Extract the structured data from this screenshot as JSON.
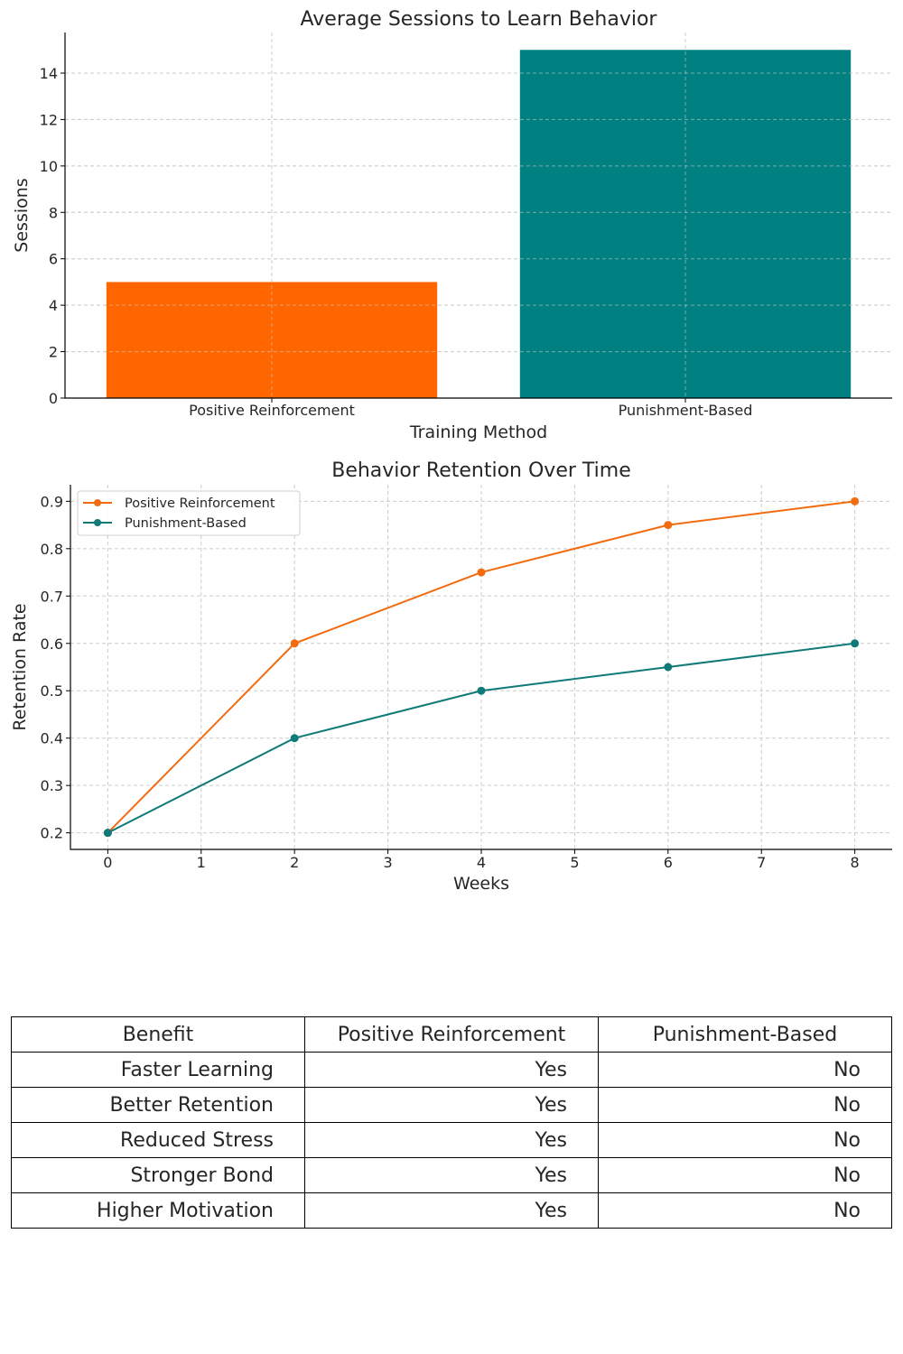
{
  "chart_data": [
    {
      "type": "bar",
      "title": "Average Sessions to Learn Behavior",
      "xlabel": "Training Method",
      "ylabel": "Sessions",
      "categories": [
        "Positive Reinforcement",
        "Punishment-Based"
      ],
      "values": [
        5,
        15
      ],
      "colors": [
        "#ff6600",
        "#008080"
      ],
      "ylim": [
        0,
        15.75
      ],
      "yticks": [
        0,
        2,
        4,
        6,
        8,
        10,
        12,
        14
      ],
      "grid": true
    },
    {
      "type": "line",
      "title": "Behavior Retention Over Time",
      "xlabel": "Weeks",
      "ylabel": "Retention Rate",
      "x": [
        0,
        2,
        4,
        6,
        8
      ],
      "xlim": [
        -0.4,
        8.4
      ],
      "ylim": [
        0.165,
        0.935
      ],
      "xticks": [
        0,
        1,
        2,
        3,
        4,
        5,
        6,
        7,
        8
      ],
      "yticks": [
        0.2,
        0.3,
        0.4,
        0.5,
        0.6,
        0.7,
        0.8,
        0.9
      ],
      "grid": true,
      "legend": "upper left",
      "series": [
        {
          "name": "Positive Reinforcement",
          "values": [
            0.2,
            0.6,
            0.75,
            0.85,
            0.9
          ],
          "color": "#f26b0f"
        },
        {
          "name": "Punishment-Based",
          "values": [
            0.2,
            0.4,
            0.5,
            0.55,
            0.6
          ],
          "color": "#0f7a78"
        }
      ]
    }
  ],
  "table": {
    "headers": [
      "Benefit",
      "Positive Reinforcement",
      "Punishment-Based"
    ],
    "rows": [
      [
        "Faster Learning",
        "Yes",
        "No"
      ],
      [
        "Better Retention",
        "Yes",
        "No"
      ],
      [
        "Reduced Stress",
        "Yes",
        "No"
      ],
      [
        "Stronger Bond",
        "Yes",
        "No"
      ],
      [
        "Higher Motivation",
        "Yes",
        "No"
      ]
    ]
  }
}
